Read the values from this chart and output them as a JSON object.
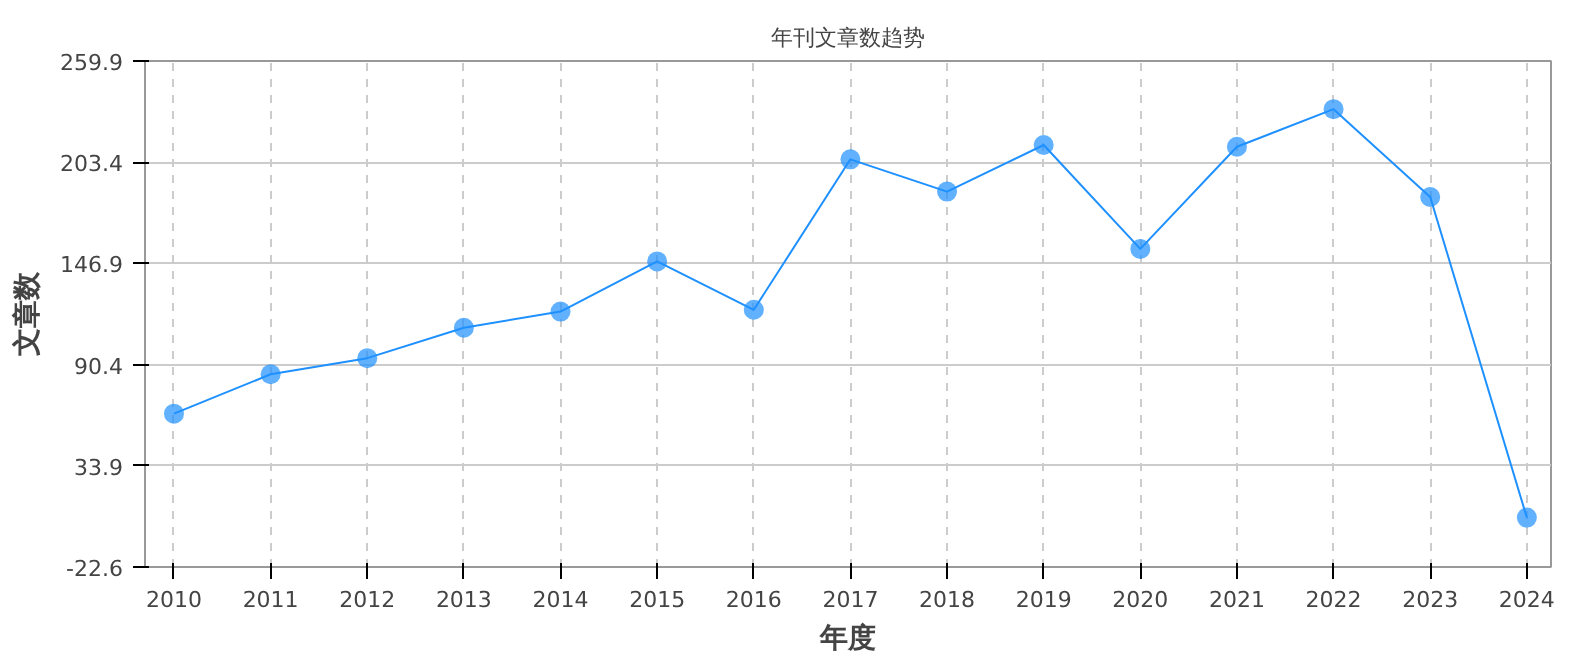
{
  "chart_data": {
    "type": "line",
    "title": "年刊文章数趋势",
    "xlabel": "年度",
    "ylabel": "文章数",
    "x": [
      2010,
      2011,
      2012,
      2013,
      2014,
      2015,
      2016,
      2017,
      2018,
      2019,
      2020,
      2021,
      2022,
      2023,
      2024
    ],
    "series": [
      {
        "color": "#1e90ff",
        "values": [
          63,
          85,
          94,
          111,
          120,
          148,
          121,
          205,
          187,
          213,
          155,
          212,
          233,
          184,
          5
        ]
      }
    ],
    "xlim": [
      2009.7,
      2024.25
    ],
    "xticks": [
      2010,
      2011,
      2012,
      2013,
      2014,
      2015,
      2016,
      2017,
      2018,
      2019,
      2020,
      2021,
      2022,
      2023,
      2024
    ],
    "ylim": [
      -22.6,
      259.9
    ],
    "yticks": [
      -22.6,
      33.9,
      90.4,
      146.9,
      203.4,
      259.9
    ],
    "grid": true,
    "marker": "circle",
    "line_style": "solid"
  }
}
